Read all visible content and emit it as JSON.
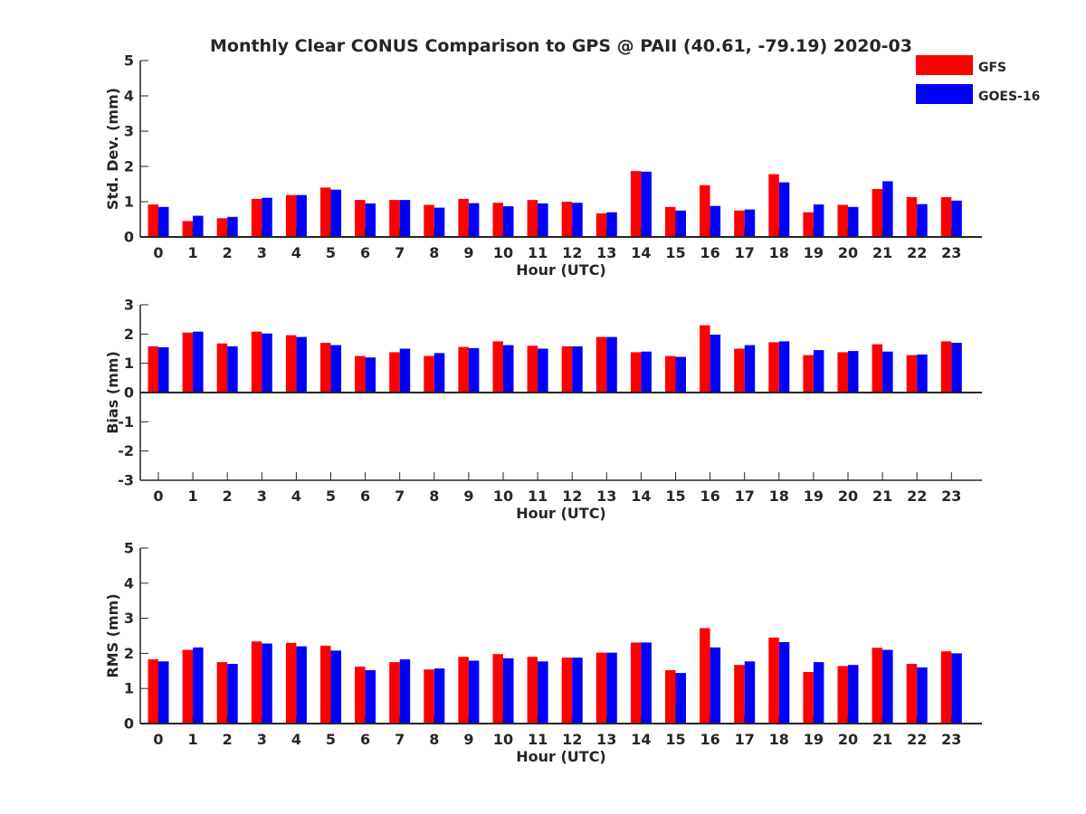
{
  "title": "Monthly Clear CONUS Comparison to GPS @ PAII (40.61, -79.19) 2020-03",
  "legend": [
    {
      "name": "GFS",
      "color": "#ff0000"
    },
    {
      "name": "GOES-16",
      "color": "#0000ff"
    }
  ],
  "chart_data": [
    {
      "type": "bar",
      "ylabel": "Std. Dev. (mm)",
      "xlabel": "Hour (UTC)",
      "ylim": [
        0,
        5
      ],
      "yticks": [
        0,
        1,
        2,
        3,
        4,
        5
      ],
      "categories": [
        "0",
        "1",
        "2",
        "3",
        "4",
        "5",
        "6",
        "7",
        "8",
        "9",
        "10",
        "11",
        "12",
        "13",
        "14",
        "15",
        "16",
        "17",
        "18",
        "19",
        "20",
        "21",
        "22",
        "23"
      ],
      "series": [
        {
          "name": "GFS",
          "color": "#ff0000",
          "values": [
            0.92,
            0.45,
            0.53,
            1.08,
            1.19,
            1.4,
            1.05,
            1.05,
            0.91,
            1.08,
            0.97,
            1.05,
            1.0,
            0.67,
            1.87,
            0.85,
            1.47,
            0.75,
            1.78,
            0.7,
            0.91,
            1.36,
            1.13,
            1.13
          ]
        },
        {
          "name": "GOES-16",
          "color": "#0000ff",
          "values": [
            0.85,
            0.6,
            0.57,
            1.11,
            1.19,
            1.34,
            0.95,
            1.05,
            0.83,
            0.96,
            0.87,
            0.95,
            0.97,
            0.7,
            1.85,
            0.75,
            0.88,
            0.78,
            1.55,
            0.92,
            0.85,
            1.58,
            0.93,
            1.03
          ]
        }
      ]
    },
    {
      "type": "bar",
      "ylabel": "Bias (mm)",
      "xlabel": "Hour (UTC)",
      "ylim": [
        -3,
        3
      ],
      "yticks": [
        -3,
        -2,
        -1,
        0,
        1,
        2,
        3
      ],
      "categories": [
        "0",
        "1",
        "2",
        "3",
        "4",
        "5",
        "6",
        "7",
        "8",
        "9",
        "10",
        "11",
        "12",
        "13",
        "14",
        "15",
        "16",
        "17",
        "18",
        "19",
        "20",
        "21",
        "22",
        "23"
      ],
      "series": [
        {
          "name": "GFS",
          "color": "#ff0000",
          "values": [
            1.58,
            2.05,
            1.68,
            2.08,
            1.96,
            1.7,
            1.25,
            1.38,
            1.25,
            1.56,
            1.75,
            1.6,
            1.58,
            1.9,
            1.38,
            1.25,
            2.3,
            1.5,
            1.72,
            1.28,
            1.38,
            1.65,
            1.28,
            1.75
          ]
        },
        {
          "name": "GOES-16",
          "color": "#0000ff",
          "values": [
            1.55,
            2.08,
            1.58,
            2.02,
            1.9,
            1.62,
            1.2,
            1.5,
            1.35,
            1.52,
            1.62,
            1.5,
            1.58,
            1.9,
            1.4,
            1.22,
            1.98,
            1.62,
            1.75,
            1.45,
            1.42,
            1.4,
            1.3,
            1.7
          ]
        }
      ]
    },
    {
      "type": "bar",
      "ylabel": "RMS (mm)",
      "xlabel": "Hour (UTC)",
      "ylim": [
        0,
        5
      ],
      "yticks": [
        0,
        1,
        2,
        3,
        4,
        5
      ],
      "categories": [
        "0",
        "1",
        "2",
        "3",
        "4",
        "5",
        "6",
        "7",
        "8",
        "9",
        "10",
        "11",
        "12",
        "13",
        "14",
        "15",
        "16",
        "17",
        "18",
        "19",
        "20",
        "21",
        "22",
        "23"
      ],
      "series": [
        {
          "name": "GFS",
          "color": "#ff0000",
          "values": [
            1.83,
            2.1,
            1.75,
            2.34,
            2.3,
            2.22,
            1.62,
            1.75,
            1.54,
            1.9,
            1.98,
            1.9,
            1.88,
            2.02,
            2.31,
            1.52,
            2.72,
            1.67,
            2.45,
            1.47,
            1.64,
            2.16,
            1.7,
            2.06
          ]
        },
        {
          "name": "GOES-16",
          "color": "#0000ff",
          "values": [
            1.77,
            2.17,
            1.7,
            2.28,
            2.2,
            2.08,
            1.52,
            1.83,
            1.57,
            1.79,
            1.86,
            1.77,
            1.88,
            2.02,
            2.31,
            1.44,
            2.17,
            1.77,
            2.32,
            1.75,
            1.67,
            2.1,
            1.6,
            2.0
          ]
        }
      ]
    }
  ]
}
